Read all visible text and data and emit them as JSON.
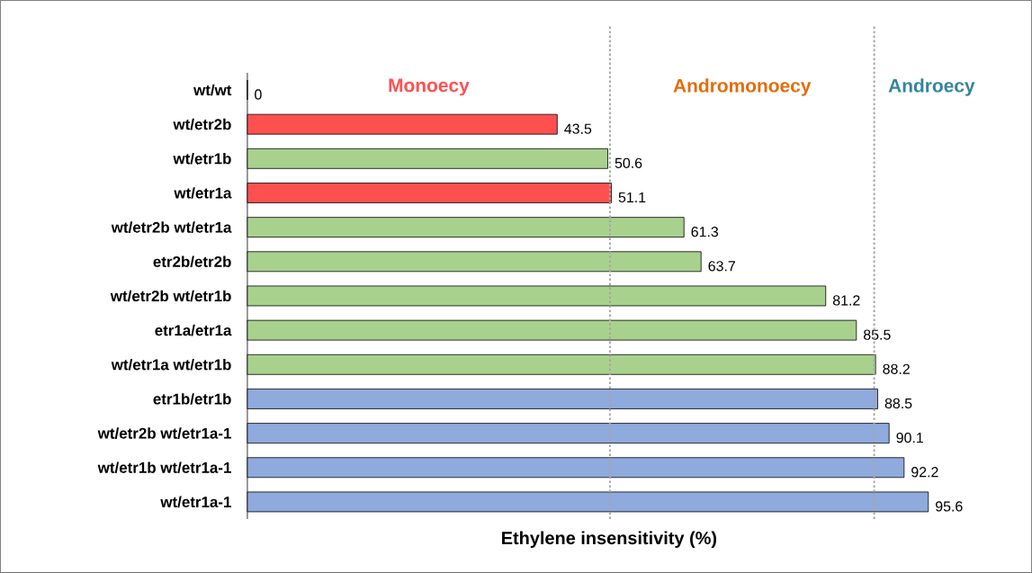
{
  "chart_data": {
    "type": "bar",
    "orientation": "horizontal",
    "xlabel": "Ethylene insensitivity (%)",
    "categories": [
      "wt/wt",
      "wt/etr2b",
      "wt/etr1b",
      "wt/etr1a",
      "wt/etr2b wt/etr1a",
      "etr2b/etr2b",
      "wt/etr2b wt/etr1b",
      "etr1a/etr1a",
      "wt/etr1a wt/etr1b",
      "etr1b/etr1b",
      "wt/etr2b wt/etr1a-1",
      "wt/etr1b wt/etr1a-1",
      "wt/etr1a-1"
    ],
    "values": [
      0,
      43.5,
      50.6,
      51.1,
      61.3,
      63.7,
      81.2,
      85.5,
      88.2,
      88.5,
      90.1,
      92.2,
      95.6
    ],
    "colors": [
      "#a9d18e",
      "#ff5050",
      "#a9d18e",
      "#ff5050",
      "#a9d18e",
      "#a9d18e",
      "#a9d18e",
      "#a9d18e",
      "#a9d18e",
      "#8faadc",
      "#8faadc",
      "#8faadc",
      "#8faadc"
    ],
    "data_labels": true,
    "tick_labels": "y",
    "ref_lines": [
      {
        "axis": "x",
        "value": 50.9,
        "color": "#a6a6a6",
        "line_style": "dotted"
      },
      {
        "axis": "x",
        "value": 88,
        "color": "#a6a6a6",
        "line_style": "dotted"
      }
    ],
    "annotations": [
      "Monoecy",
      "Andromonoecy",
      "Androecy"
    ]
  }
}
